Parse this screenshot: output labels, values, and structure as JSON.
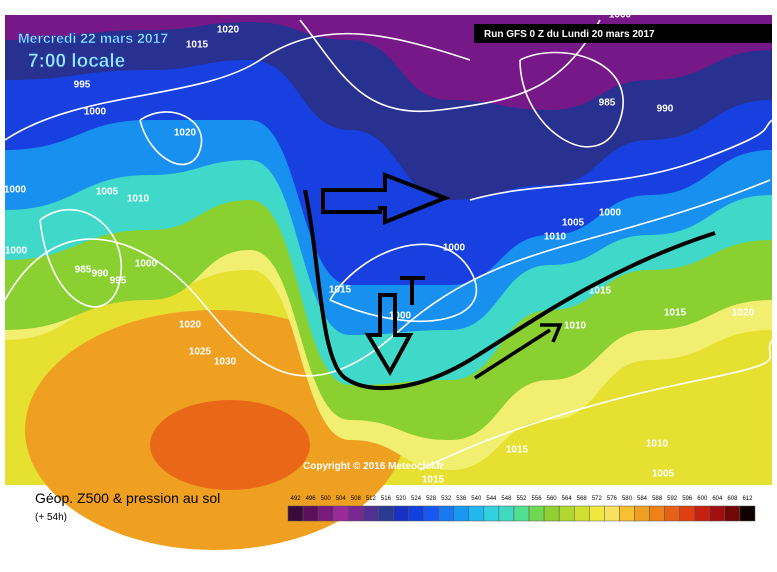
{
  "header": {
    "date": "Mercredi 22 mars 2017",
    "time": "7:00 locale",
    "run": "Run GFS 0 Z du Lundi 20 mars 2017"
  },
  "map": {
    "copyright": "Copyright © 2016 Meteociel.fr",
    "isobar_labels": [
      "1020",
      "1015",
      "995",
      "1000",
      "1020",
      "1000",
      "1005",
      "1010",
      "1000",
      "985",
      "990",
      "995",
      "1000",
      "1020",
      "1025",
      "1030",
      "1015",
      "1000",
      "1000",
      "1000",
      "985",
      "990",
      "1005",
      "1000",
      "1010",
      "1015",
      "1015",
      "1020",
      "1010",
      "1015",
      "1010",
      "1005",
      "1015"
    ]
  },
  "footer": {
    "title": "Géop. Z500 & pression au sol",
    "lead": "(+ 54h)",
    "scale": [
      492,
      496,
      500,
      504,
      508,
      512,
      516,
      520,
      524,
      528,
      532,
      536,
      540,
      544,
      548,
      552,
      556,
      560,
      564,
      568,
      572,
      576,
      580,
      584,
      588,
      592,
      596,
      600,
      604,
      608,
      612
    ]
  }
}
